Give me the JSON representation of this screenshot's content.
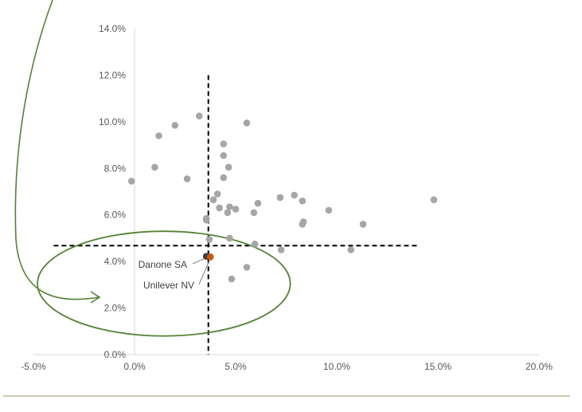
{
  "chart_data": {
    "type": "scatter",
    "title": "",
    "xlabel": "",
    "ylabel": "",
    "xlim": [
      -0.05,
      0.2
    ],
    "ylim": [
      0.0,
      0.14
    ],
    "x_ticks": [
      -0.05,
      0.0,
      0.05,
      0.1,
      0.15,
      0.2
    ],
    "x_tick_labels": [
      "-5.0%",
      "0.0%",
      "5.0%",
      "10.0%",
      "15.0%",
      "20.0%"
    ],
    "y_ticks": [
      0.0,
      0.02,
      0.04,
      0.06,
      0.08,
      0.1,
      0.12,
      0.14
    ],
    "y_tick_labels": [
      "0.0%",
      "2.0%",
      "4.0%",
      "6.0%",
      "8.0%",
      "10.0%",
      "12.0%",
      "14.0%"
    ],
    "grid": false,
    "legend": "none",
    "reference_lines": {
      "vertical_x": 0.0365,
      "vertical_top": 0.12,
      "horizontal_y": 0.0468,
      "horizontal_x": [
        -0.04,
        0.14
      ]
    },
    "highlight_circle": {
      "center": [
        0.0145,
        0.0305
      ],
      "radius_x": 0.0625,
      "radius_y": 0.0225
    },
    "colors": {
      "point": "#a6a6a6",
      "danone": "#3f3f3f",
      "unilever": "#c55a11",
      "reference_lines": "#000000",
      "circle": "#548235",
      "axis": "#d9d9d9",
      "footer_rule": "#9c9468"
    },
    "points": [
      {
        "x": -0.0015,
        "y": 0.0745
      },
      {
        "x": 0.01,
        "y": 0.0805
      },
      {
        "x": 0.012,
        "y": 0.094
      },
      {
        "x": 0.02,
        "y": 0.0985
      },
      {
        "x": 0.026,
        "y": 0.0755
      },
      {
        "x": 0.032,
        "y": 0.1025
      },
      {
        "x": 0.0355,
        "y": 0.0585
      },
      {
        "x": 0.0355,
        "y": 0.0578
      },
      {
        "x": 0.037,
        "y": 0.0495
      },
      {
        "x": 0.039,
        "y": 0.0665
      },
      {
        "x": 0.041,
        "y": 0.069
      },
      {
        "x": 0.042,
        "y": 0.063
      },
      {
        "x": 0.044,
        "y": 0.0905
      },
      {
        "x": 0.044,
        "y": 0.0855
      },
      {
        "x": 0.044,
        "y": 0.076
      },
      {
        "x": 0.046,
        "y": 0.061
      },
      {
        "x": 0.0465,
        "y": 0.0805
      },
      {
        "x": 0.047,
        "y": 0.0635
      },
      {
        "x": 0.047,
        "y": 0.05
      },
      {
        "x": 0.048,
        "y": 0.0325
      },
      {
        "x": 0.05,
        "y": 0.0625
      },
      {
        "x": 0.0555,
        "y": 0.0995
      },
      {
        "x": 0.0555,
        "y": 0.0375
      },
      {
        "x": 0.059,
        "y": 0.061
      },
      {
        "x": 0.0595,
        "y": 0.0475
      },
      {
        "x": 0.061,
        "y": 0.065
      },
      {
        "x": 0.072,
        "y": 0.0675
      },
      {
        "x": 0.0725,
        "y": 0.045
      },
      {
        "x": 0.079,
        "y": 0.0685
      },
      {
        "x": 0.083,
        "y": 0.066
      },
      {
        "x": 0.083,
        "y": 0.056
      },
      {
        "x": 0.0835,
        "y": 0.057
      },
      {
        "x": 0.096,
        "y": 0.062
      },
      {
        "x": 0.107,
        "y": 0.045
      },
      {
        "x": 0.113,
        "y": 0.056
      },
      {
        "x": 0.148,
        "y": 0.0665
      }
    ],
    "highlighted_points": [
      {
        "name": "Danone SA",
        "x": 0.0355,
        "y": 0.0422
      },
      {
        "name": "Unilever NV",
        "x": 0.0375,
        "y": 0.042
      }
    ]
  }
}
